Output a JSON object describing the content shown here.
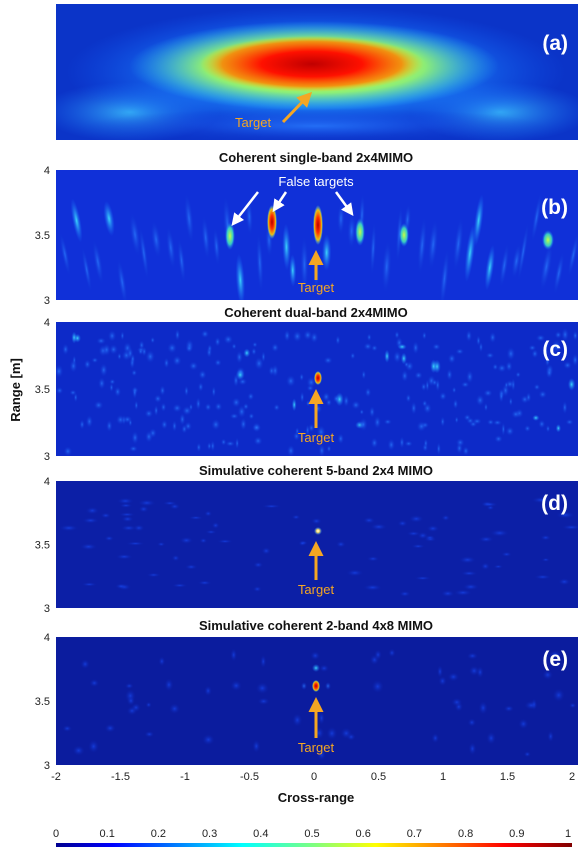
{
  "chart_data": {
    "type": "heatmap",
    "xlabel": "Cross-range",
    "ylabel": "Range [m]",
    "xlim": [
      -2,
      2
    ],
    "ylim": [
      3,
      4
    ],
    "x_ticks": [
      "-2",
      "-1.5",
      "-1",
      "-0.5",
      "0",
      "0.5",
      "1",
      "1.5",
      "2"
    ],
    "x_tick_values": [
      -2,
      -1.5,
      -1,
      -0.5,
      0,
      0.5,
      1,
      1.5,
      2
    ],
    "y_ticks": [
      "3",
      "3.5",
      "4"
    ],
    "y_tick_values": [
      3,
      3.5,
      4
    ],
    "colorbar": {
      "ticks": [
        "0",
        "0.1",
        "0.2",
        "0.3",
        "0.4",
        "0.5",
        "0.6",
        "0.7",
        "0.8",
        "0.9",
        "1"
      ],
      "tick_values": [
        0,
        0.1,
        0.2,
        0.3,
        0.4,
        0.5,
        0.6,
        0.7,
        0.8,
        0.9,
        1
      ],
      "colormap": "jet"
    },
    "panels": [
      {
        "label": "(a)",
        "title": "",
        "annotations": [
          {
            "text": "Target",
            "x": 0,
            "y": 3.5
          }
        ],
        "peak": {
          "x": 0,
          "y": 3.58,
          "value": 1
        }
      },
      {
        "label": "(b)",
        "title": "Coherent single-band 2x4MIMO",
        "annotations": [
          {
            "text": "Target",
            "x": 0,
            "y": 3.55
          },
          {
            "text": "False targets",
            "x": -0.4,
            "y": 3.75
          }
        ],
        "peak": {
          "x": 0,
          "y": 3.55,
          "value": 1
        }
      },
      {
        "label": "(c)",
        "title": "Coherent dual-band 2x4MIMO",
        "annotations": [
          {
            "text": "Target",
            "x": 0,
            "y": 3.55
          }
        ],
        "peak": {
          "x": 0,
          "y": 3.57,
          "value": 1
        }
      },
      {
        "label": "(d)",
        "title": "Simulative coherent 5-band 2x4 MIMO",
        "annotations": [
          {
            "text": "Target",
            "x": 0,
            "y": 3.55
          }
        ],
        "peak": {
          "x": 0,
          "y": 3.6,
          "value": 1
        }
      },
      {
        "label": "(e)",
        "title": "Simulative coherent 2-band 4x8 MIMO",
        "annotations": [
          {
            "text": "Target",
            "x": 0,
            "y": 3.55
          }
        ],
        "peak": {
          "x": 0,
          "y": 3.62,
          "value": 1
        }
      }
    ]
  }
}
